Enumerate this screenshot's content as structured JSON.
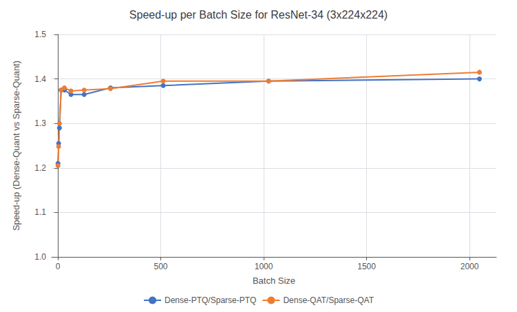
{
  "chart_data": {
    "type": "line",
    "title": "Speed-up per Batch Size for ResNet-34 (3x224x224)",
    "xlabel": "Batch Size",
    "ylabel": "Speed-up (Dense-Quant vs Sparse-Quant)",
    "x": [
      1,
      4,
      8,
      16,
      32,
      64,
      128,
      256,
      512,
      1024,
      2048
    ],
    "series": [
      {
        "name": "Dense-PTQ/Sparse-PTQ",
        "color": "#4472C4",
        "marker": "circle",
        "values": [
          1.21,
          1.255,
          1.29,
          1.375,
          1.375,
          1.365,
          1.365,
          1.38,
          1.385,
          1.395,
          1.4
        ]
      },
      {
        "name": "Dense-QAT/Sparse-QAT",
        "color": "#ED7D31",
        "marker": "circle",
        "values": [
          1.205,
          1.248,
          1.3,
          1.375,
          1.38,
          1.373,
          1.375,
          1.378,
          1.395,
          1.395,
          1.415
        ]
      }
    ],
    "xlim": [
      -30,
      2130
    ],
    "xticks": [
      0,
      500,
      1000,
      1500,
      2000
    ],
    "ylim": [
      1.0,
      1.5
    ],
    "yticks": [
      {
        "value": 1.0,
        "label": "1.0"
      },
      1.1,
      1.2,
      1.3,
      1.4,
      1.5
    ],
    "grid": true,
    "legend": "bottom"
  }
}
